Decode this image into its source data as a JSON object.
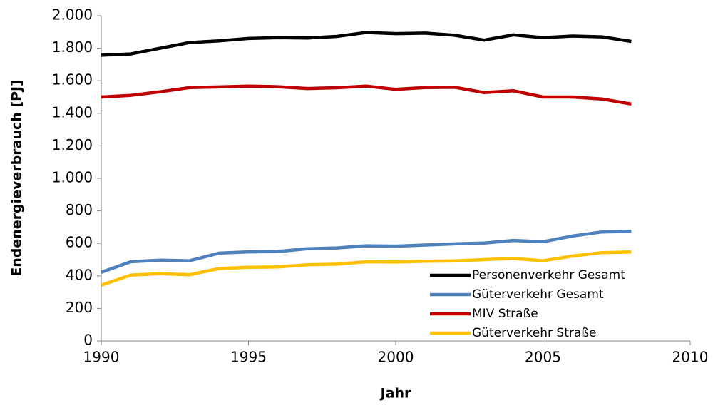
{
  "chart_data": {
    "type": "line",
    "x_label": "Jahr",
    "y_label": "Endenergieverbrauch [PJ]",
    "x": [
      1990,
      1991,
      1992,
      1993,
      1994,
      1995,
      1996,
      1997,
      1998,
      1999,
      2000,
      2001,
      2002,
      2003,
      2004,
      2005,
      2006,
      2007,
      2008
    ],
    "series": [
      {
        "name": "Personenverkehr Gesamt",
        "color": "#000000",
        "values": [
          1757,
          1765,
          1800,
          1835,
          1845,
          1860,
          1865,
          1863,
          1873,
          1897,
          1890,
          1893,
          1880,
          1850,
          1882,
          1865,
          1875,
          1870,
          1842
        ]
      },
      {
        "name": "Güterverkehr Gesamt",
        "color": "#4f81bd",
        "values": [
          422,
          487,
          497,
          493,
          540,
          548,
          550,
          567,
          572,
          585,
          583,
          590,
          597,
          602,
          618,
          610,
          645,
          670,
          674
        ]
      },
      {
        "name": "MIV Straße",
        "color": "#c00000",
        "values": [
          1500,
          1510,
          1532,
          1558,
          1562,
          1567,
          1563,
          1552,
          1557,
          1567,
          1547,
          1558,
          1560,
          1527,
          1538,
          1500,
          1500,
          1488,
          1457
        ]
      },
      {
        "name": "Güterverkehr Straße",
        "color": "#ffc000",
        "values": [
          343,
          405,
          413,
          407,
          445,
          453,
          455,
          468,
          472,
          487,
          485,
          490,
          492,
          500,
          507,
          493,
          522,
          543,
          547
        ]
      }
    ],
    "xlim": [
      1990,
      2010
    ],
    "xticks": [
      1990,
      1995,
      2000,
      2005,
      2010
    ],
    "ylim": [
      0,
      2000
    ],
    "yticks": [
      0,
      200,
      400,
      600,
      800,
      {
        "value": 1000,
        "label": "1.000"
      },
      {
        "value": 1200,
        "label": "1.200"
      },
      {
        "value": 1400,
        "label": "1.400"
      },
      {
        "value": 1600,
        "label": "1.600"
      },
      {
        "value": 1800,
        "label": "1.800"
      },
      {
        "value": 2000,
        "label": "2.000"
      }
    ],
    "grid": false,
    "legend": "lower right"
  }
}
